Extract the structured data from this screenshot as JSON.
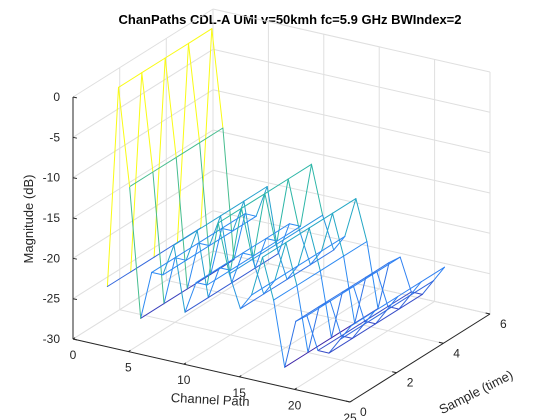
{
  "chart_data": {
    "type": "surface",
    "title": "ChanPaths CDL-A UMI v=50kmh fc=5.9 GHz BWIndex=2",
    "xlabel": "Channel Path",
    "ylabel": "Sample (time)",
    "zlabel": "Magnitude (dB)",
    "xlim": [
      0,
      25
    ],
    "ylim": [
      0,
      6
    ],
    "zlim": [
      -30,
      0
    ],
    "xticks": [
      "0",
      "5",
      "10",
      "15",
      "20",
      "25"
    ],
    "yticks": [
      "0",
      "2",
      "4",
      "6"
    ],
    "zticks": [
      "0",
      "-5",
      "-10",
      "-15",
      "-20",
      "-25",
      "-30"
    ],
    "grid": true,
    "colormap": "parula",
    "colors": {
      "low": "#3e26a8",
      "mid": "#1fb3b3",
      "high": "#f9fb15"
    },
    "channel_paths": [
      1,
      2,
      3,
      4,
      5,
      6,
      7,
      8,
      9,
      10,
      11,
      12,
      13,
      14,
      15,
      16,
      17,
      18,
      19,
      20,
      21,
      22,
      23
    ],
    "samples": [
      1,
      2,
      3,
      4,
      5
    ],
    "magnitude_db": [
      [
        -25,
        0,
        -12,
        -28,
        -22,
        -22,
        -18,
        -26,
        -22,
        -22,
        -14,
        -20,
        -24,
        -22,
        -17,
        -22,
        -30,
        -24,
        -23,
        -27,
        -27,
        -25,
        -23
      ],
      [
        -25,
        0,
        -12,
        -28,
        -22,
        -22,
        -18,
        -26,
        -22,
        -22,
        -14,
        -20,
        -24,
        -22,
        -17,
        -22,
        -30,
        -24,
        -23,
        -27,
        -27,
        -25,
        -23
      ],
      [
        -25,
        0,
        -12,
        -28,
        -22,
        -22,
        -18,
        -26,
        -22,
        -22,
        -14,
        -20,
        -24,
        -22,
        -17,
        -22,
        -30,
        -24,
        -23,
        -27,
        -27,
        -25,
        -23
      ],
      [
        -25,
        0,
        -12,
        -28,
        -22,
        -22,
        -18,
        -26,
        -22,
        -22,
        -14,
        -20,
        -24,
        -22,
        -17,
        -22,
        -30,
        -24,
        -23,
        -27,
        -27,
        -25,
        -23
      ],
      [
        -25,
        0,
        -12,
        -28,
        -22,
        -22,
        -18,
        -26,
        -22,
        -22,
        -14,
        -20,
        -24,
        -22,
        -17,
        -22,
        -30,
        -24,
        -23,
        -27,
        -27,
        -25,
        -23
      ]
    ]
  }
}
